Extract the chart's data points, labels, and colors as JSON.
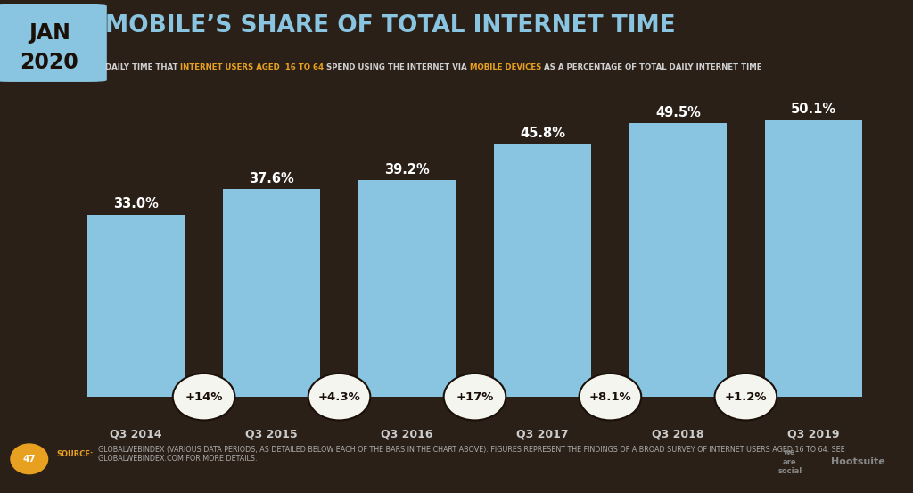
{
  "title": "MOBILE’S SHARE OF TOTAL INTERNET TIME",
  "subtitle_parts": [
    {
      "text": "DAILY TIME THAT ",
      "color": "#d0d0d0"
    },
    {
      "text": "INTERNET USERS AGED  16 TO 64",
      "color": "#e8a020"
    },
    {
      "text": " SPEND USING THE INTERNET VIA ",
      "color": "#d0d0d0"
    },
    {
      "text": "MOBILE DEVICES",
      "color": "#e8a020"
    },
    {
      "text": " AS A PERCENTAGE OF TOTAL DAILY INTERNET TIME",
      "color": "#d0d0d0"
    }
  ],
  "jan_line1": "JAN",
  "jan_line2": "2020",
  "categories": [
    "Q3 2014",
    "Q3 2015",
    "Q3 2016",
    "Q3 2017",
    "Q3 2018",
    "Q3 2019"
  ],
  "values": [
    33.0,
    37.6,
    39.2,
    45.8,
    49.5,
    50.1
  ],
  "changes": [
    "+14%",
    "+4.3%",
    "+17%",
    "+8.1%",
    "+1.2%",
    null
  ],
  "bar_color": "#89C4E1",
  "background_color": "#2b2018",
  "jan_bg_color": "#89C4E1",
  "title_color": "#89C4E1",
  "value_label_color": "#ffffff",
  "category_label_color": "#cccccc",
  "circle_bg_color": "#f5f5f0",
  "circle_edge_color": "#1a1008",
  "circle_text_color": "#1a1008",
  "footer_bg_color": "#1e1508",
  "source_label_color": "#e8a020",
  "source_text_color": "#aaaaaa",
  "page_num_bg": "#e8a020",
  "source_text": "GLOBALWEBINDEX (VARIOUS DATA PERIODS, AS DETAILED BELOW EACH OF THE BARS IN THE CHART ABOVE). FIGURES REPRESENT THE FINDINGS OF A BROAD SURVEY OF INTERNET USERS AGED 16 TO 64. SEE GLOBALWEBINDEX.COM FOR MORE DETAILS.",
  "ylim": [
    0,
    58
  ],
  "bar_width": 0.72
}
